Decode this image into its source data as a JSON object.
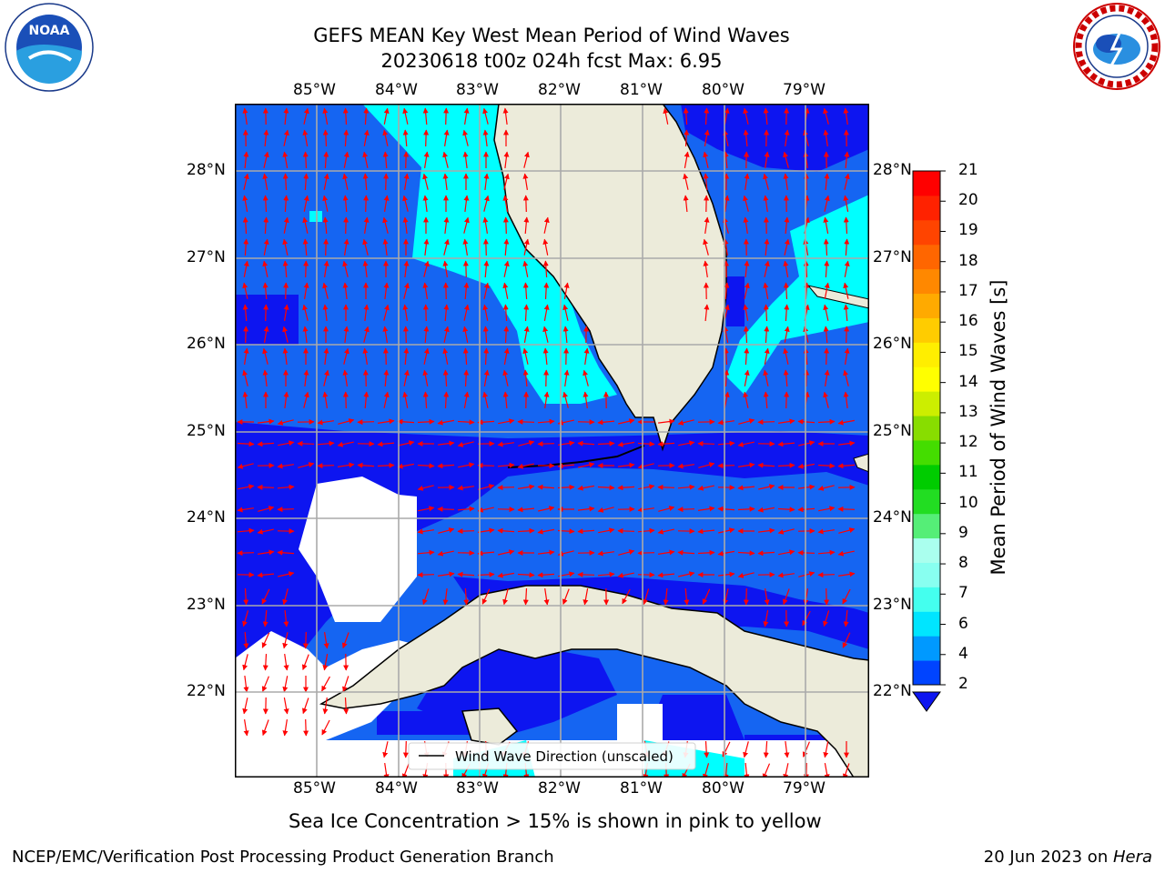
{
  "title": {
    "line1": "GEFS MEAN Key West Mean Period of Wind Waves",
    "line2": "20230618 t00z 024h fcst   Max: 6.95"
  },
  "axes": {
    "lon_labels": [
      "85°W",
      "84°W",
      "83°W",
      "82°W",
      "81°W",
      "80°W",
      "79°W"
    ],
    "lat_labels": [
      "28°N",
      "27°N",
      "26°N",
      "25°N",
      "24°N",
      "23°N",
      "22°N"
    ]
  },
  "legend": {
    "label": "Wind Wave Direction (unscaled)"
  },
  "colorbar": {
    "title": "Mean Period of Wind Waves [s]",
    "ticks": [
      "21",
      "20",
      "19",
      "18",
      "17",
      "16",
      "15",
      "14",
      "13",
      "12",
      "11",
      "10",
      "9",
      "8",
      "7",
      "6",
      "4",
      "2"
    ],
    "colors": [
      "#0044ff",
      "#0099ff",
      "#00e5ff",
      "#44ffee",
      "#88fff0",
      "#aaffee",
      "#55ee77",
      "#22dd22",
      "#00cc00",
      "#44dd00",
      "#88dd00",
      "#ccee00",
      "#ffff00",
      "#ffee00",
      "#ffcc00",
      "#ffaa00",
      "#ff8800",
      "#ff6600",
      "#ff4400",
      "#ff2200",
      "#ff0000"
    ]
  },
  "colors": {
    "land": "#ecebda",
    "deep_blue": "#0d15f0",
    "mid_blue": "#1565f2",
    "cyan": "#00ffff",
    "arrow": "#ff0000",
    "grid": "#aaaaaa"
  },
  "note": "Sea Ice Concentration > 15% is shown in pink to yellow",
  "footer": {
    "left": "NCEP/EMC/Verification Post Processing Product Generation Branch",
    "right_date": "20 Jun 2023 on ",
    "right_host": "Hera"
  },
  "logos": {
    "noaa": "NOAA",
    "nws": "NATIONAL WEATHER SERVICE"
  }
}
